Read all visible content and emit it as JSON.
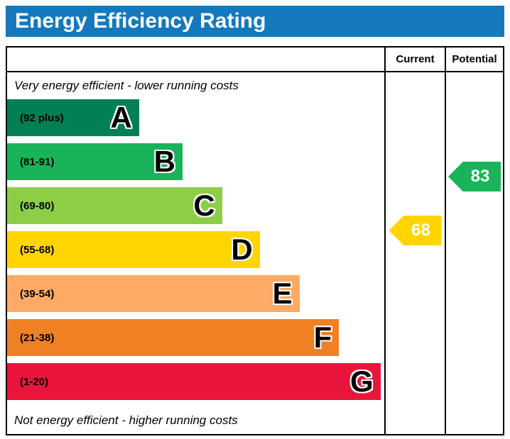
{
  "header": {
    "title": "Energy Efficiency Rating"
  },
  "colors": {
    "title_bar": "#1479bc"
  },
  "table": {
    "current_label": "Current",
    "potential_label": "Potential"
  },
  "notes": {
    "top": "Very energy efficient - lower running costs",
    "bottom": "Not energy efficient - higher running costs"
  },
  "chart_data": {
    "type": "bar",
    "title": "Energy Efficiency Rating",
    "bands": [
      {
        "letter": "A",
        "range": "(92 plus)",
        "min": 92,
        "max": 100,
        "color": "#008054",
        "width_pct": 35
      },
      {
        "letter": "B",
        "range": "(81-91)",
        "min": 81,
        "max": 91,
        "color": "#19b459",
        "width_pct": 46.5
      },
      {
        "letter": "C",
        "range": "(69-80)",
        "min": 69,
        "max": 80,
        "color": "#8dce46",
        "width_pct": 57
      },
      {
        "letter": "D",
        "range": "(55-68)",
        "min": 55,
        "max": 68,
        "color": "#ffd500",
        "width_pct": 67
      },
      {
        "letter": "E",
        "range": "(39-54)",
        "min": 39,
        "max": 54,
        "color": "#fcaa65",
        "width_pct": 77.5
      },
      {
        "letter": "F",
        "range": "(21-38)",
        "min": 21,
        "max": 38,
        "color": "#ef8023",
        "width_pct": 88
      },
      {
        "letter": "G",
        "range": "(1-20)",
        "min": 1,
        "max": 20,
        "color": "#e9153b",
        "width_pct": 99
      }
    ],
    "current": {
      "value": 68,
      "band": "D",
      "color": "#ffd500"
    },
    "potential": {
      "value": 83,
      "band": "B",
      "color": "#19b459"
    },
    "legend_position": "none",
    "grid": false
  }
}
